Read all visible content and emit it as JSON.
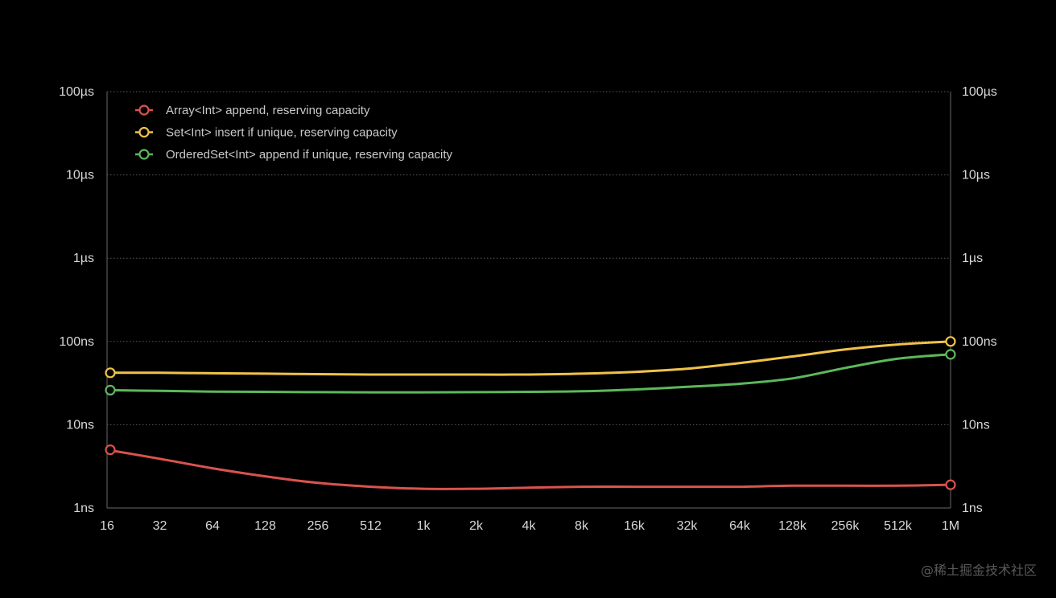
{
  "chart_data": {
    "type": "line",
    "title": "",
    "xlabel": "",
    "ylabel": "",
    "x_scale": "log2",
    "y_scale": "log10",
    "x": [
      16,
      32,
      64,
      128,
      256,
      512,
      1024,
      2048,
      4096,
      8192,
      16384,
      32768,
      65536,
      131072,
      262144,
      524288,
      1048576
    ],
    "x_tick_labels": [
      "16",
      "32",
      "64",
      "128",
      "256",
      "512",
      "1k",
      "2k",
      "4k",
      "8k",
      "16k",
      "32k",
      "64k",
      "128k",
      "256k",
      "512k",
      "1M"
    ],
    "y_ticks_seconds": [
      1e-09,
      1e-08,
      1e-07,
      1e-06,
      1e-05,
      0.0001
    ],
    "y_tick_labels": [
      "1ns",
      "10ns",
      "100ns",
      "1µs",
      "10µs",
      "100µs"
    ],
    "ylim_seconds": [
      1e-09,
      0.0001
    ],
    "grid": true,
    "legend_position": "top-left",
    "series": [
      {
        "name": "Array<Int> append, reserving capacity",
        "color": "#d9534f",
        "values_ns": [
          5.0,
          3.9,
          3.0,
          2.4,
          2.0,
          1.8,
          1.7,
          1.7,
          1.75,
          1.8,
          1.8,
          1.8,
          1.8,
          1.85,
          1.85,
          1.85,
          1.9
        ]
      },
      {
        "name": "Set<Int> insert if unique, reserving capacity",
        "color": "#f0c24b",
        "values_ns": [
          42,
          42,
          41.5,
          41,
          40.5,
          40,
          40,
          40,
          40,
          41,
          43,
          47,
          55,
          66,
          80,
          92,
          100
        ]
      },
      {
        "name": "OrderedSet<Int> append if unique, reserving capacity",
        "color": "#5cb85c",
        "values_ns": [
          26,
          25.5,
          25,
          24.8,
          24.6,
          24.5,
          24.5,
          24.6,
          24.8,
          25.2,
          26.5,
          28.5,
          31,
          36,
          48,
          62,
          70
        ]
      }
    ]
  },
  "watermark": "@稀土掘金技术社区"
}
